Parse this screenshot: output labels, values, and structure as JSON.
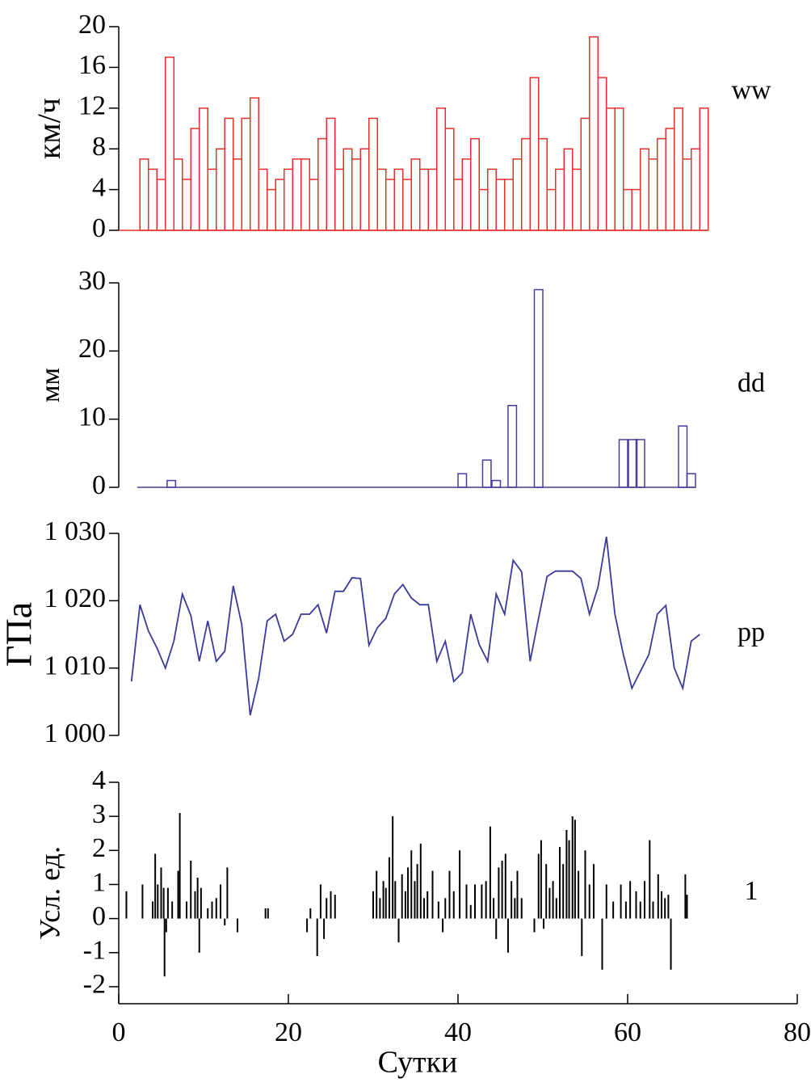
{
  "chart_data": [
    {
      "type": "bar",
      "label": "ww",
      "ylabel": "км/ч",
      "color": "#e8302a",
      "x": [
        3,
        4,
        5,
        6,
        7,
        8,
        9,
        10,
        11,
        12,
        13,
        14,
        15,
        16,
        17,
        18,
        19,
        20,
        21,
        22,
        23,
        24,
        25,
        26,
        27,
        28,
        29,
        30,
        31,
        32,
        33,
        34,
        35,
        36,
        37,
        38,
        39,
        40,
        41,
        42,
        43,
        44,
        45,
        46,
        47,
        48,
        49,
        50,
        51,
        52,
        53,
        54,
        55,
        56,
        57,
        58,
        59,
        60,
        61,
        62,
        63,
        64,
        65,
        66,
        67,
        68,
        69
      ],
      "values": [
        7,
        6,
        5,
        17,
        7,
        5,
        10,
        12,
        6,
        8,
        11,
        7,
        11,
        13,
        6,
        4,
        5,
        6,
        7,
        7,
        5,
        9,
        11,
        6,
        8,
        7,
        8,
        11,
        6,
        5,
        6,
        5,
        7,
        6,
        6,
        12,
        10,
        5,
        7,
        9,
        4,
        6,
        5,
        5,
        7,
        9,
        15,
        9,
        4,
        6,
        8,
        6,
        11,
        19,
        15,
        12,
        12,
        4,
        4,
        8,
        7,
        9,
        10,
        12,
        7,
        8,
        12
      ],
      "xlim": [
        0,
        80
      ],
      "ylim": [
        0,
        20
      ],
      "yticks": [
        0,
        4,
        8,
        12,
        16,
        20
      ]
    },
    {
      "type": "bar",
      "label": "dd",
      "ylabel": "мм",
      "color": "#4b3a9c",
      "x": [
        6.2,
        40.5,
        43.4,
        44.5,
        46.4,
        49.5,
        59.5,
        60.6,
        61.5,
        66.5,
        67.5
      ],
      "values": [
        1,
        2,
        4,
        1,
        12,
        29,
        7,
        7,
        7,
        9,
        2
      ],
      "xlim": [
        0,
        80
      ],
      "ylim": [
        0,
        30
      ],
      "yticks": [
        0,
        10,
        20,
        30
      ]
    },
    {
      "type": "line",
      "label": "pp",
      "ylabel": "ГПа",
      "color": "#3a3a9a",
      "x": [
        1.5,
        2.5,
        3.5,
        4.5,
        5.5,
        6.5,
        7.5,
        8.5,
        9.5,
        10.5,
        11.5,
        12.5,
        13.5,
        14.5,
        15.5,
        16.5,
        17.5,
        18.5,
        19.5,
        20.5,
        21.5,
        22.5,
        23.5,
        24.5,
        25.5,
        26.5,
        27.5,
        28.5,
        29.5,
        30.5,
        31.5,
        32.5,
        33.5,
        34.5,
        35.5,
        36.5,
        37.5,
        38.5,
        39.5,
        40.5,
        41.5,
        42.5,
        43.5,
        44.5,
        45.5,
        46.5,
        47.5,
        48.5,
        49.5,
        50.5,
        51.5,
        52.5,
        53.5,
        54.5,
        55.5,
        56.5,
        57.5,
        58.5,
        59.5,
        60.5,
        61.5,
        62.5,
        63.5,
        64.5,
        65.5,
        66.5,
        67.5,
        68.5
      ],
      "values": [
        1008,
        1019.4,
        1015.5,
        1013,
        1010,
        1014,
        1021,
        1017.8,
        1011,
        1017,
        1011,
        1012.5,
        1022.2,
        1016.5,
        1003,
        1008.5,
        1017,
        1018,
        1014,
        1015,
        1018,
        1018,
        1019.4,
        1015.2,
        1021.4,
        1021.4,
        1023.4,
        1023.3,
        1013.4,
        1016,
        1017.4,
        1021,
        1022.4,
        1020.4,
        1019.4,
        1019.4,
        1011,
        1014,
        1008,
        1009.3,
        1018,
        1013.5,
        1011,
        1021,
        1018,
        1026,
        1024.3,
        1011,
        1017.4,
        1023.6,
        1024.4,
        1024.4,
        1024.4,
        1023.3,
        1018,
        1022,
        1029.5,
        1018,
        1012,
        1007,
        1009.5,
        1012,
        1018,
        1019.3,
        1010,
        1007,
        1014,
        1015
      ],
      "xlim": [
        0,
        80
      ],
      "ylim": [
        1000,
        1030
      ],
      "yticks": [
        {
          "value": 1000,
          "label": "1 000"
        },
        {
          "value": 1010,
          "label": "1 010"
        },
        {
          "value": 1020,
          "label": "1 020"
        },
        {
          "value": 1030,
          "label": "1 030"
        }
      ]
    },
    {
      "type": "stem",
      "label": "1",
      "ylabel": "Усл. ед.",
      "xlabel": "Сутки",
      "color": "#000000",
      "x": [
        0.9,
        2.8,
        4.0,
        4.3,
        4.6,
        5.0,
        5.3,
        5.4,
        5.6,
        5.8,
        6.3,
        7.0,
        7.2,
        8.0,
        8.5,
        9.0,
        9.3,
        9.5,
        9.7,
        10.5,
        11.0,
        11.5,
        12.0,
        12.5,
        12.8,
        14.0,
        17.3,
        17.6,
        22.2,
        22.6,
        23.4,
        23.8,
        24.2,
        24.5,
        25.0,
        25.5,
        30.0,
        30.4,
        30.8,
        31.2,
        31.5,
        31.9,
        32.3,
        32.6,
        33.0,
        33.4,
        33.8,
        34.1,
        34.5,
        34.9,
        35.2,
        35.6,
        36.0,
        36.4,
        37.0,
        37.7,
        38.2,
        38.5,
        39.0,
        39.5,
        40.2,
        41.0,
        41.5,
        42.0,
        42.8,
        43.3,
        43.8,
        44.2,
        44.5,
        44.8,
        45.2,
        45.6,
        45.9,
        46.3,
        46.7,
        47.0,
        47.5,
        49.0,
        49.5,
        49.8,
        50.1,
        50.4,
        50.8,
        51.2,
        51.6,
        52.0,
        52.4,
        52.8,
        53.1,
        53.5,
        53.8,
        54.2,
        54.6,
        55.0,
        55.5,
        56.0,
        57.0,
        57.5,
        58.3,
        59.2,
        59.8,
        60.3,
        61.0,
        61.5,
        62.0,
        62.6,
        63.0,
        63.6,
        64.0,
        64.4,
        64.8,
        65.1,
        66.8,
        67.0
      ],
      "values": [
        0.8,
        1.0,
        0.5,
        1.9,
        1.0,
        1.5,
        0.9,
        -1.7,
        -0.4,
        0.9,
        0.5,
        1.4,
        3.1,
        0.5,
        1.7,
        0.8,
        1.2,
        -1.0,
        0.9,
        0.3,
        0.5,
        0.6,
        1.0,
        -0.2,
        1.5,
        -0.4,
        0.3,
        0.3,
        -0.4,
        0.3,
        -1.1,
        1.0,
        -0.6,
        0.6,
        0.8,
        0.7,
        0.8,
        1.4,
        0.6,
        1.1,
        0.9,
        1.8,
        3.0,
        1.1,
        -0.7,
        1.3,
        0.8,
        1.5,
        2.0,
        1.1,
        1.6,
        2.2,
        0.6,
        0.8,
        1.4,
        0.5,
        -0.4,
        0.6,
        1.4,
        0.8,
        2.0,
        1.0,
        0.4,
        1.0,
        1.0,
        1.1,
        2.7,
        0.6,
        -0.6,
        1.5,
        1.7,
        1.9,
        -1.0,
        1.1,
        0.6,
        1.4,
        0.6,
        -0.4,
        1.9,
        2.3,
        -0.3,
        1.6,
        0.9,
        1.1,
        0.6,
        2.1,
        1.6,
        2.6,
        2.3,
        3.0,
        2.9,
        1.4,
        -1.1,
        2.0,
        1.0,
        1.6,
        -1.5,
        1.0,
        0.5,
        1.0,
        0.5,
        1.1,
        0.8,
        0.5,
        1.1,
        2.3,
        0.5,
        1.3,
        0.8,
        0.6,
        0.7,
        -1.5,
        1.3,
        0.7
      ],
      "xlim": [
        0,
        80
      ],
      "ylim": [
        -2.5,
        4
      ],
      "yticks": [
        -2,
        -1,
        0,
        1,
        2,
        3,
        4
      ],
      "xticks": [
        0,
        20,
        40,
        60,
        80
      ]
    }
  ]
}
